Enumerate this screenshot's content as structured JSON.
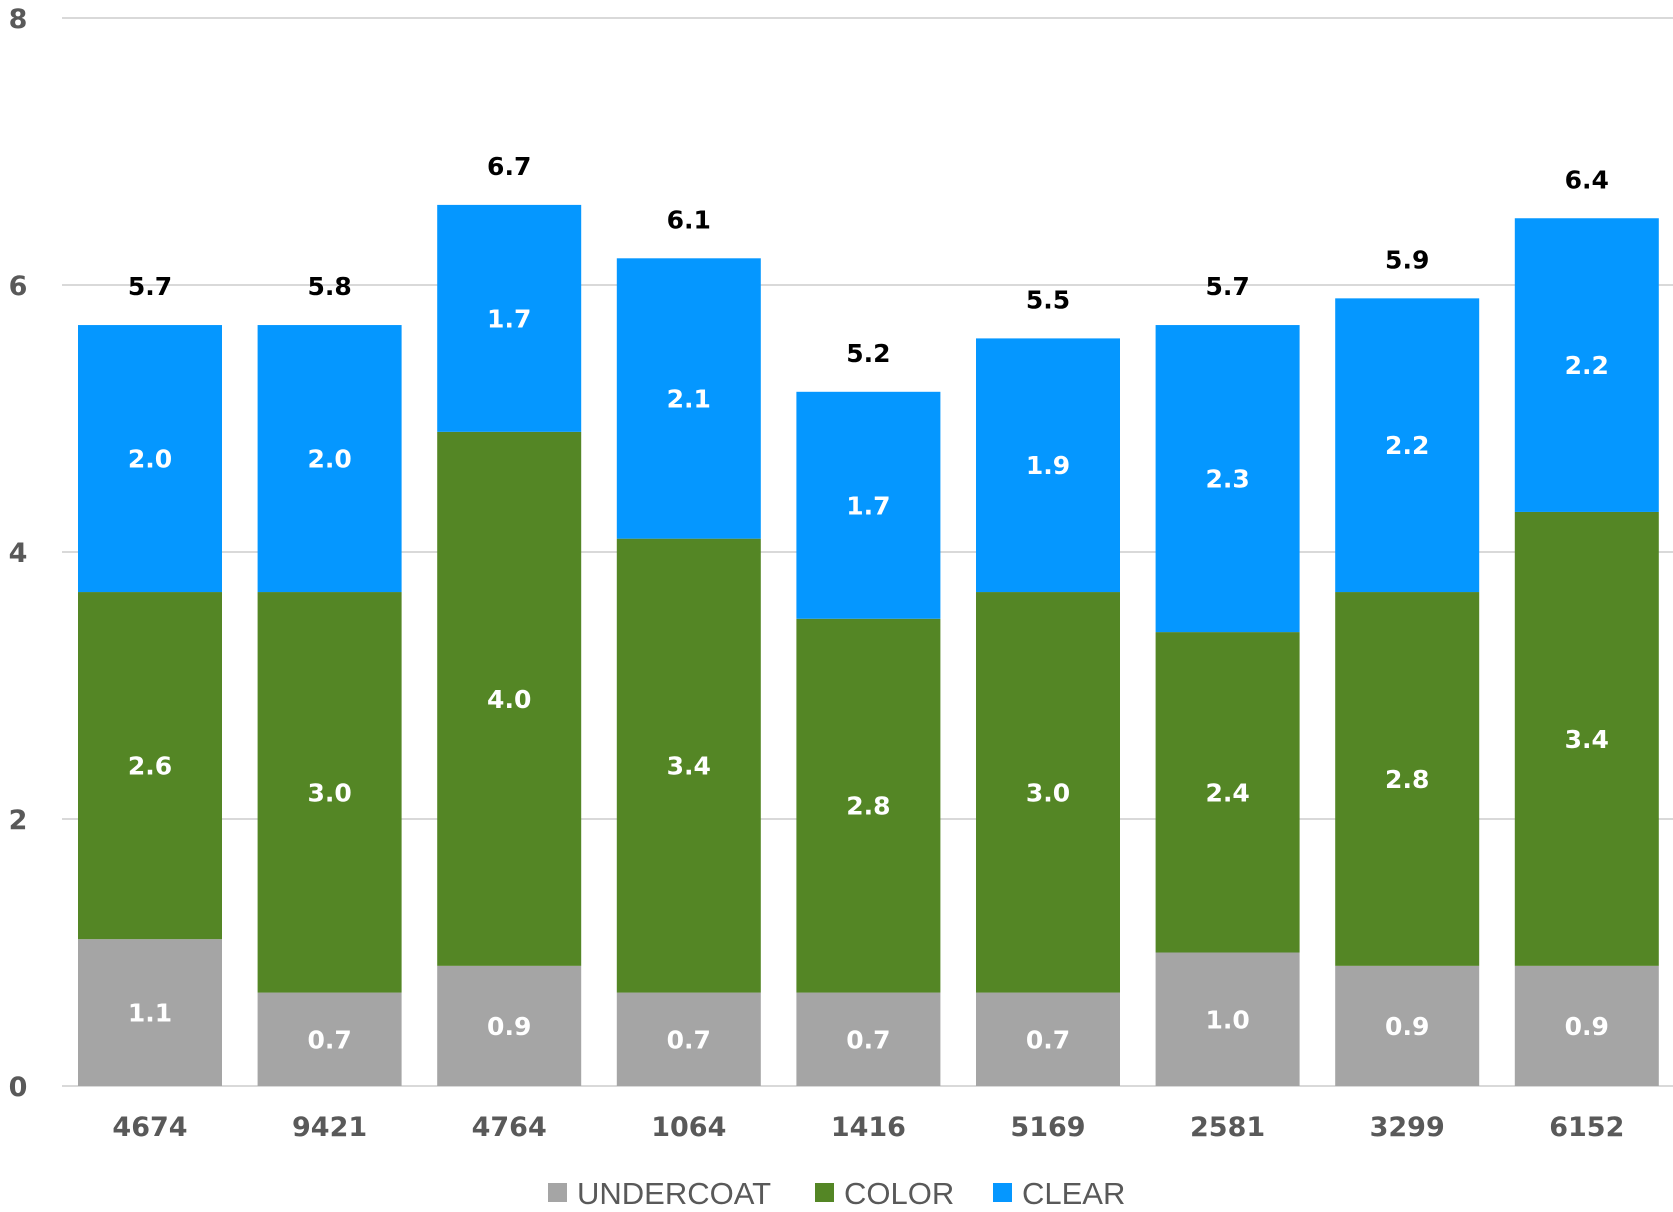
{
  "chart_data": {
    "type": "bar",
    "stacked": true,
    "categories": [
      "4674",
      "9421",
      "4764",
      "1064",
      "1416",
      "5169",
      "2581",
      "3299",
      "6152"
    ],
    "series": [
      {
        "name": "UNDERCOAT",
        "color": "#a5a5a5",
        "values": [
          1.1,
          0.7,
          0.9,
          0.7,
          0.7,
          0.7,
          1.0,
          0.9,
          0.9
        ]
      },
      {
        "name": "COLOR",
        "color": "#548625",
        "values": [
          2.6,
          3.0,
          4.0,
          3.4,
          2.8,
          3.0,
          2.4,
          2.8,
          3.4
        ]
      },
      {
        "name": "CLEAR",
        "color": "#0597ff",
        "values": [
          2.0,
          2.0,
          1.7,
          2.1,
          1.7,
          1.9,
          2.3,
          2.2,
          2.2
        ]
      }
    ],
    "totals": [
      5.7,
      5.8,
      6.7,
      6.1,
      5.2,
      5.5,
      5.7,
      5.9,
      6.4
    ],
    "ylim": [
      0,
      8
    ],
    "yticks": [
      "0",
      "2",
      "4",
      "6",
      "8"
    ],
    "grid": true,
    "legend_position": "bottom",
    "title": "",
    "xlabel": "",
    "ylabel": ""
  }
}
